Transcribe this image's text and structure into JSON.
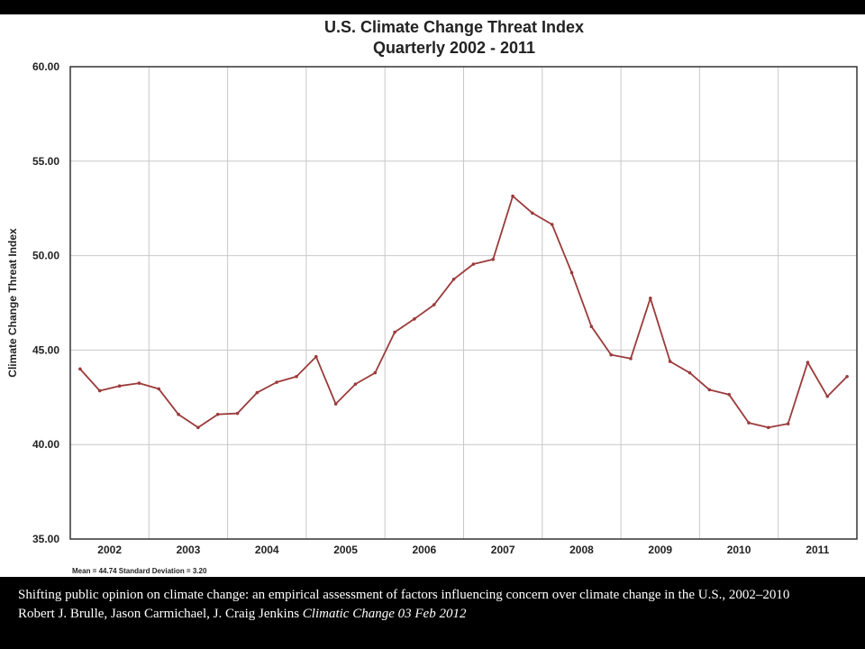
{
  "caption": {
    "line1": "Shifting public opinion on climate change: an empirical  assessment of factors influencing  concern over climate change in the U.S., 2002–2010",
    "authors": "Robert J. Brulle, Jason Carmichael,  J. Craig Jenkins",
    "journal": "Climatic Change 03 Feb 2012"
  },
  "colors": {
    "line": "#9b3b3b",
    "grid": "#c8c8c8",
    "frame": "#333333"
  },
  "chart_data": {
    "type": "line",
    "title": "U.S. Climate Change Threat Index",
    "subtitle": "Quarterly 2002 - 2011",
    "xlabel": "",
    "ylabel": "Climate Change Threat Index",
    "ylim": [
      35,
      60
    ],
    "yticks": [
      "35.00",
      "40.00",
      "45.00",
      "50.00",
      "55.00",
      "60.00"
    ],
    "xtick_labels": [
      "2002",
      "2003",
      "2004",
      "2005",
      "2006",
      "2007",
      "2008",
      "2009",
      "2010",
      "2011"
    ],
    "note": "Mean = 44.74   Standard Deviation = 3.20",
    "grid": true,
    "series": [
      {
        "values": [
          44.0,
          42.85,
          43.1,
          43.25,
          42.95,
          41.6,
          40.9,
          41.6,
          41.65,
          42.75,
          43.3,
          43.6,
          44.65,
          42.15,
          43.2,
          43.8,
          45.95,
          46.65,
          47.4,
          48.75,
          49.55,
          49.8,
          53.15,
          52.25,
          51.65,
          49.1,
          46.25,
          44.75,
          44.55,
          47.75,
          44.4,
          43.8,
          42.9,
          42.65,
          41.15,
          40.9,
          41.1,
          44.35,
          42.55,
          43.6
        ]
      }
    ]
  }
}
